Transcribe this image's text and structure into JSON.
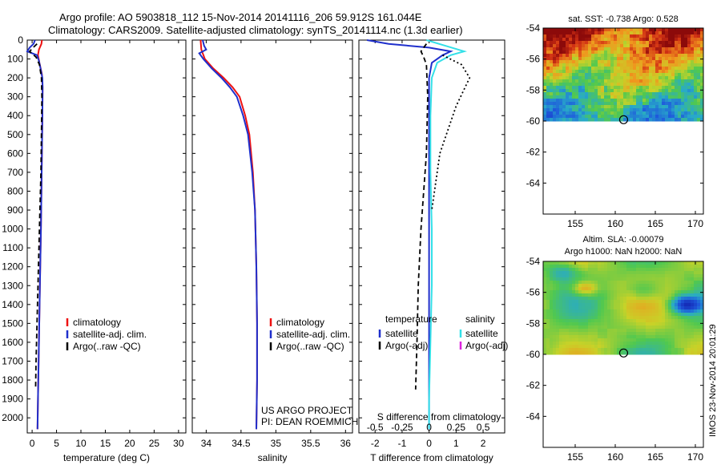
{
  "header": {
    "line1": "Argo profile: AO 5903818_112 15-Nov-2014 20141116_206 59.912S 161.044E",
    "line2": "Climatology: CARS2009. Satellite-adjusted climatology: synTS_20141114.nc (1.3d earlier)"
  },
  "colors": {
    "climatology": "#ee1111",
    "satellite": "#1f2fcc",
    "argo": "#000000",
    "salinity_satellite": "#33e0e8",
    "salinity_argo": "#dd22dd"
  },
  "depth_ticks": [
    "0",
    "100",
    "200",
    "300",
    "400",
    "500",
    "600",
    "700",
    "800",
    "900",
    "1000",
    "1100",
    "1200",
    "1300",
    "1400",
    "1500",
    "1600",
    "1700",
    "1800",
    "1900",
    "2000"
  ],
  "legends": {
    "temperature": [
      "climatology",
      "satellite-adj. clim.",
      "Argo(..raw -QC)"
    ],
    "salinity": [
      "climatology",
      "satellite-adj. clim.",
      "Argo(..raw -QC)"
    ],
    "difference": {
      "temp_title": "temperature",
      "temp_items": [
        "satellite",
        "Argo(-adj)"
      ],
      "sal_title": "salinity",
      "sal_items": [
        "satellite",
        "Argo(-adj)"
      ]
    }
  },
  "annotation": {
    "project": "US ARGO PROJECT",
    "pi": "PI: DEAN ROEMMICH"
  },
  "chart_data": [
    {
      "type": "line",
      "name": "temperature",
      "xlabel": "temperature (deg C)",
      "ylabel": "",
      "xlim": [
        -1,
        31.5
      ],
      "ylim": [
        2080,
        0
      ],
      "x_ticks": [
        "0",
        "5",
        "10",
        "15",
        "20",
        "25",
        "30"
      ],
      "y_reversed": true,
      "series": [
        {
          "name": "climatology",
          "style": "solid",
          "points": [
            [
              2.0,
              0
            ],
            [
              1.9,
              20
            ],
            [
              1.4,
              50
            ],
            [
              1.2,
              80
            ],
            [
              1.5,
              120
            ],
            [
              2.0,
              180
            ],
            [
              2.15,
              250
            ],
            [
              2.1,
              400
            ],
            [
              2.0,
              600
            ],
            [
              1.9,
              800
            ],
            [
              1.8,
              1000
            ],
            [
              1.6,
              1300
            ],
            [
              1.4,
              1600
            ],
            [
              1.2,
              1900
            ],
            [
              1.1,
              2060
            ]
          ]
        },
        {
          "name": "satellite-adj. clim.",
          "style": "solid",
          "points": [
            [
              0.6,
              0
            ],
            [
              0.3,
              20
            ],
            [
              -0.5,
              40
            ],
            [
              -1.0,
              60
            ],
            [
              1.0,
              80
            ],
            [
              1.4,
              110
            ],
            [
              1.8,
              160
            ],
            [
              2.1,
              200
            ],
            [
              2.15,
              250
            ],
            [
              2.1,
              400
            ],
            [
              2.0,
              600
            ],
            [
              1.9,
              800
            ],
            [
              1.8,
              1000
            ],
            [
              1.6,
              1300
            ],
            [
              1.4,
              1600
            ],
            [
              1.2,
              1900
            ],
            [
              1.1,
              2060
            ]
          ]
        },
        {
          "name": "Argo(..raw -QC)",
          "style": "dashed",
          "points": [
            [
              1.0,
              20
            ],
            [
              0.2,
              40
            ],
            [
              -0.5,
              60
            ],
            [
              0.8,
              90
            ],
            [
              1.5,
              130
            ],
            [
              1.9,
              200
            ],
            [
              2.0,
              300
            ],
            [
              1.9,
              500
            ],
            [
              1.8,
              700
            ],
            [
              1.6,
              900
            ],
            [
              1.4,
              1100
            ],
            [
              1.2,
              1300
            ],
            [
              1.0,
              1500
            ],
            [
              0.8,
              1700
            ],
            [
              0.7,
              1850
            ]
          ]
        }
      ]
    },
    {
      "type": "line",
      "name": "salinity",
      "xlabel": "salinity",
      "ylabel": "",
      "xlim": [
        33.8,
        36.1
      ],
      "ylim": [
        2080,
        0
      ],
      "x_ticks": [
        "34",
        "34.5",
        "35",
        "35.5",
        "36"
      ],
      "y_reversed": true,
      "series": [
        {
          "name": "climatology",
          "style": "solid",
          "points": [
            [
              33.92,
              0
            ],
            [
              33.93,
              50
            ],
            [
              33.98,
              100
            ],
            [
              34.1,
              150
            ],
            [
              34.25,
              200
            ],
            [
              34.38,
              250
            ],
            [
              34.48,
              300
            ],
            [
              34.56,
              400
            ],
            [
              34.62,
              500
            ],
            [
              34.67,
              700
            ],
            [
              34.7,
              900
            ],
            [
              34.72,
              1200
            ],
            [
              34.73,
              1500
            ],
            [
              34.73,
              1800
            ],
            [
              34.72,
              2060
            ]
          ]
        },
        {
          "name": "satellite-adj. clim.",
          "style": "solid",
          "points": [
            [
              33.95,
              0
            ],
            [
              33.97,
              30
            ],
            [
              34.0,
              50
            ],
            [
              33.9,
              70
            ],
            [
              33.96,
              100
            ],
            [
              34.08,
              150
            ],
            [
              34.22,
              200
            ],
            [
              34.34,
              250
            ],
            [
              34.44,
              300
            ],
            [
              34.53,
              400
            ],
            [
              34.6,
              500
            ],
            [
              34.66,
              700
            ],
            [
              34.7,
              900
            ],
            [
              34.72,
              1200
            ],
            [
              34.73,
              1500
            ],
            [
              34.73,
              1800
            ],
            [
              34.72,
              2060
            ]
          ]
        }
      ]
    },
    {
      "type": "line",
      "name": "difference",
      "xlabel": "T difference from climatology",
      "x2label": "S difference from climatology",
      "xlim": [
        -2.6,
        2.8
      ],
      "ylim": [
        2080,
        0
      ],
      "x_ticks": [
        "-2",
        "-1",
        "0",
        "1",
        "2"
      ],
      "x2_ticks": [
        "-0.5",
        "-0.25",
        "0",
        "0.25",
        "0.5"
      ],
      "y_reversed": true,
      "series": [
        {
          "name": "temperature satellite",
          "style": "solid",
          "points": [
            [
              -2.3,
              0
            ],
            [
              -1.5,
              20
            ],
            [
              0.0,
              40
            ],
            [
              0.8,
              60
            ],
            [
              0.5,
              80
            ],
            [
              0.1,
              120
            ],
            [
              0.0,
              200
            ],
            [
              0.0,
              400
            ],
            [
              0.0,
              1000
            ],
            [
              0.0,
              1500
            ],
            [
              0.0,
              2060
            ]
          ]
        },
        {
          "name": "temperature Argo(-adj)",
          "style": "dashed",
          "points": [
            [
              -0.1,
              20
            ],
            [
              -0.3,
              60
            ],
            [
              -0.2,
              90
            ],
            [
              -0.1,
              130
            ],
            [
              -0.05,
              300
            ],
            [
              -0.1,
              600
            ],
            [
              -0.2,
              800
            ],
            [
              -0.3,
              1000
            ],
            [
              -0.4,
              1300
            ],
            [
              -0.45,
              1600
            ],
            [
              -0.5,
              1850
            ]
          ]
        },
        {
          "name": "salinity satellite",
          "style": "solid",
          "points": [
            [
              -0.1,
              0
            ],
            [
              0.6,
              30
            ],
            [
              1.3,
              60
            ],
            [
              0.8,
              80
            ],
            [
              0.3,
              120
            ],
            [
              0.1,
              200
            ],
            [
              0.05,
              400
            ],
            [
              0.05,
              700
            ],
            [
              0.1,
              1000
            ],
            [
              0.1,
              1300
            ],
            [
              0.05,
              1600
            ],
            [
              0.0,
              1900
            ],
            [
              0.0,
              2060
            ]
          ]
        },
        {
          "name": "Argo dotted",
          "style": "dotted",
          "points": [
            [
              0.5,
              80
            ],
            [
              1.2,
              130
            ],
            [
              1.5,
              200
            ],
            [
              1.0,
              350
            ],
            [
              0.4,
              600
            ],
            [
              0.1,
              900
            ]
          ]
        }
      ]
    },
    {
      "type": "heatmap",
      "name": "sst-map",
      "title": "sat. SST: -0.738 Argo: 0.528",
      "xlim": [
        151,
        171
      ],
      "ylim": [
        -66,
        -54
      ],
      "x_ticks": [
        "155",
        "160",
        "165",
        "170"
      ],
      "y_ticks": [
        "-54",
        "-56",
        "-58",
        "-60",
        "-62",
        "-64"
      ],
      "data_extent_lat": [
        -60,
        -54
      ],
      "marker": [
        161.044,
        -59.912
      ],
      "palette": "sst"
    },
    {
      "type": "heatmap",
      "name": "sla-map",
      "title": "Altim. SLA: -0.00079",
      "subtitle": "Argo h1000: NaN h2000: NaN",
      "xlim": [
        151,
        171
      ],
      "ylim": [
        -66,
        -54
      ],
      "x_ticks": [
        "155",
        "160",
        "165",
        "170"
      ],
      "y_ticks": [
        "-54",
        "-56",
        "-58",
        "-60",
        "-62",
        "-64"
      ],
      "data_extent_lat": [
        -60,
        -54
      ],
      "marker": [
        161.044,
        -59.912
      ],
      "palette": "sla"
    }
  ],
  "footer": {
    "stamp": "IMOS 23-Nov-2014 20:01:29"
  }
}
